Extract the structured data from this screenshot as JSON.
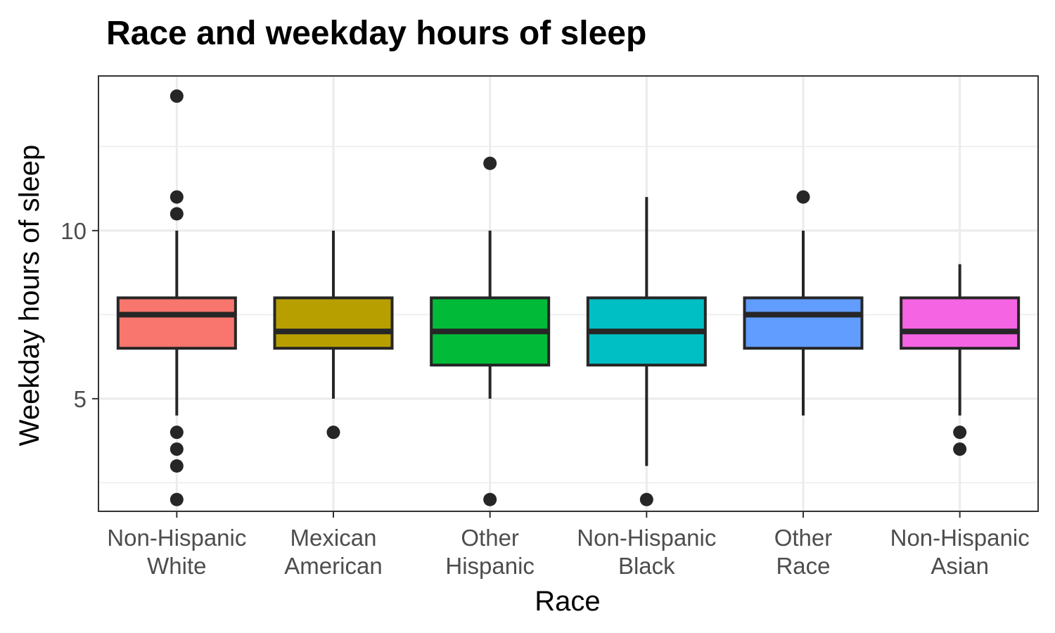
{
  "chart_data": {
    "type": "box",
    "title": "Race and weekday hours of sleep",
    "xlabel": "Race",
    "ylabel": "Weekday hours of sleep",
    "ylim": [
      1.65,
      14.6
    ],
    "y_ticks": [
      5,
      10
    ],
    "y_minor_ticks": [
      2.5,
      7.5,
      12.5
    ],
    "grid": true,
    "legend": "none",
    "categories": [
      {
        "label": [
          "Non-Hispanic",
          "White"
        ],
        "color": "#F8766D",
        "q1": 6.5,
        "median": 7.5,
        "q3": 8,
        "whisker_low": 4.5,
        "whisker_high": 10,
        "outliers": [
          14,
          11,
          10.5,
          4,
          3.5,
          3,
          2
        ]
      },
      {
        "label": [
          "Mexican",
          "American"
        ],
        "color": "#B79F00",
        "q1": 6.5,
        "median": 7,
        "q3": 8,
        "whisker_low": 5,
        "whisker_high": 10,
        "outliers": [
          4
        ]
      },
      {
        "label": [
          "Other",
          "Hispanic"
        ],
        "color": "#00BA38",
        "q1": 6,
        "median": 7,
        "q3": 8,
        "whisker_low": 5,
        "whisker_high": 10,
        "outliers": [
          12,
          2
        ]
      },
      {
        "label": [
          "Non-Hispanic",
          "Black"
        ],
        "color": "#00BFC4",
        "q1": 6,
        "median": 7,
        "q3": 8,
        "whisker_low": 3,
        "whisker_high": 11,
        "outliers": [
          2
        ]
      },
      {
        "label": [
          "Other",
          "Race"
        ],
        "color": "#619CFF",
        "q1": 6.5,
        "median": 7.5,
        "q3": 8,
        "whisker_low": 4.5,
        "whisker_high": 10,
        "outliers": [
          11
        ]
      },
      {
        "label": [
          "Non-Hispanic",
          "Asian"
        ],
        "color": "#F564E3",
        "q1": 6.5,
        "median": 7,
        "q3": 8,
        "whisker_low": 4.5,
        "whisker_high": 9,
        "outliers": [
          4,
          3.5
        ]
      }
    ]
  }
}
